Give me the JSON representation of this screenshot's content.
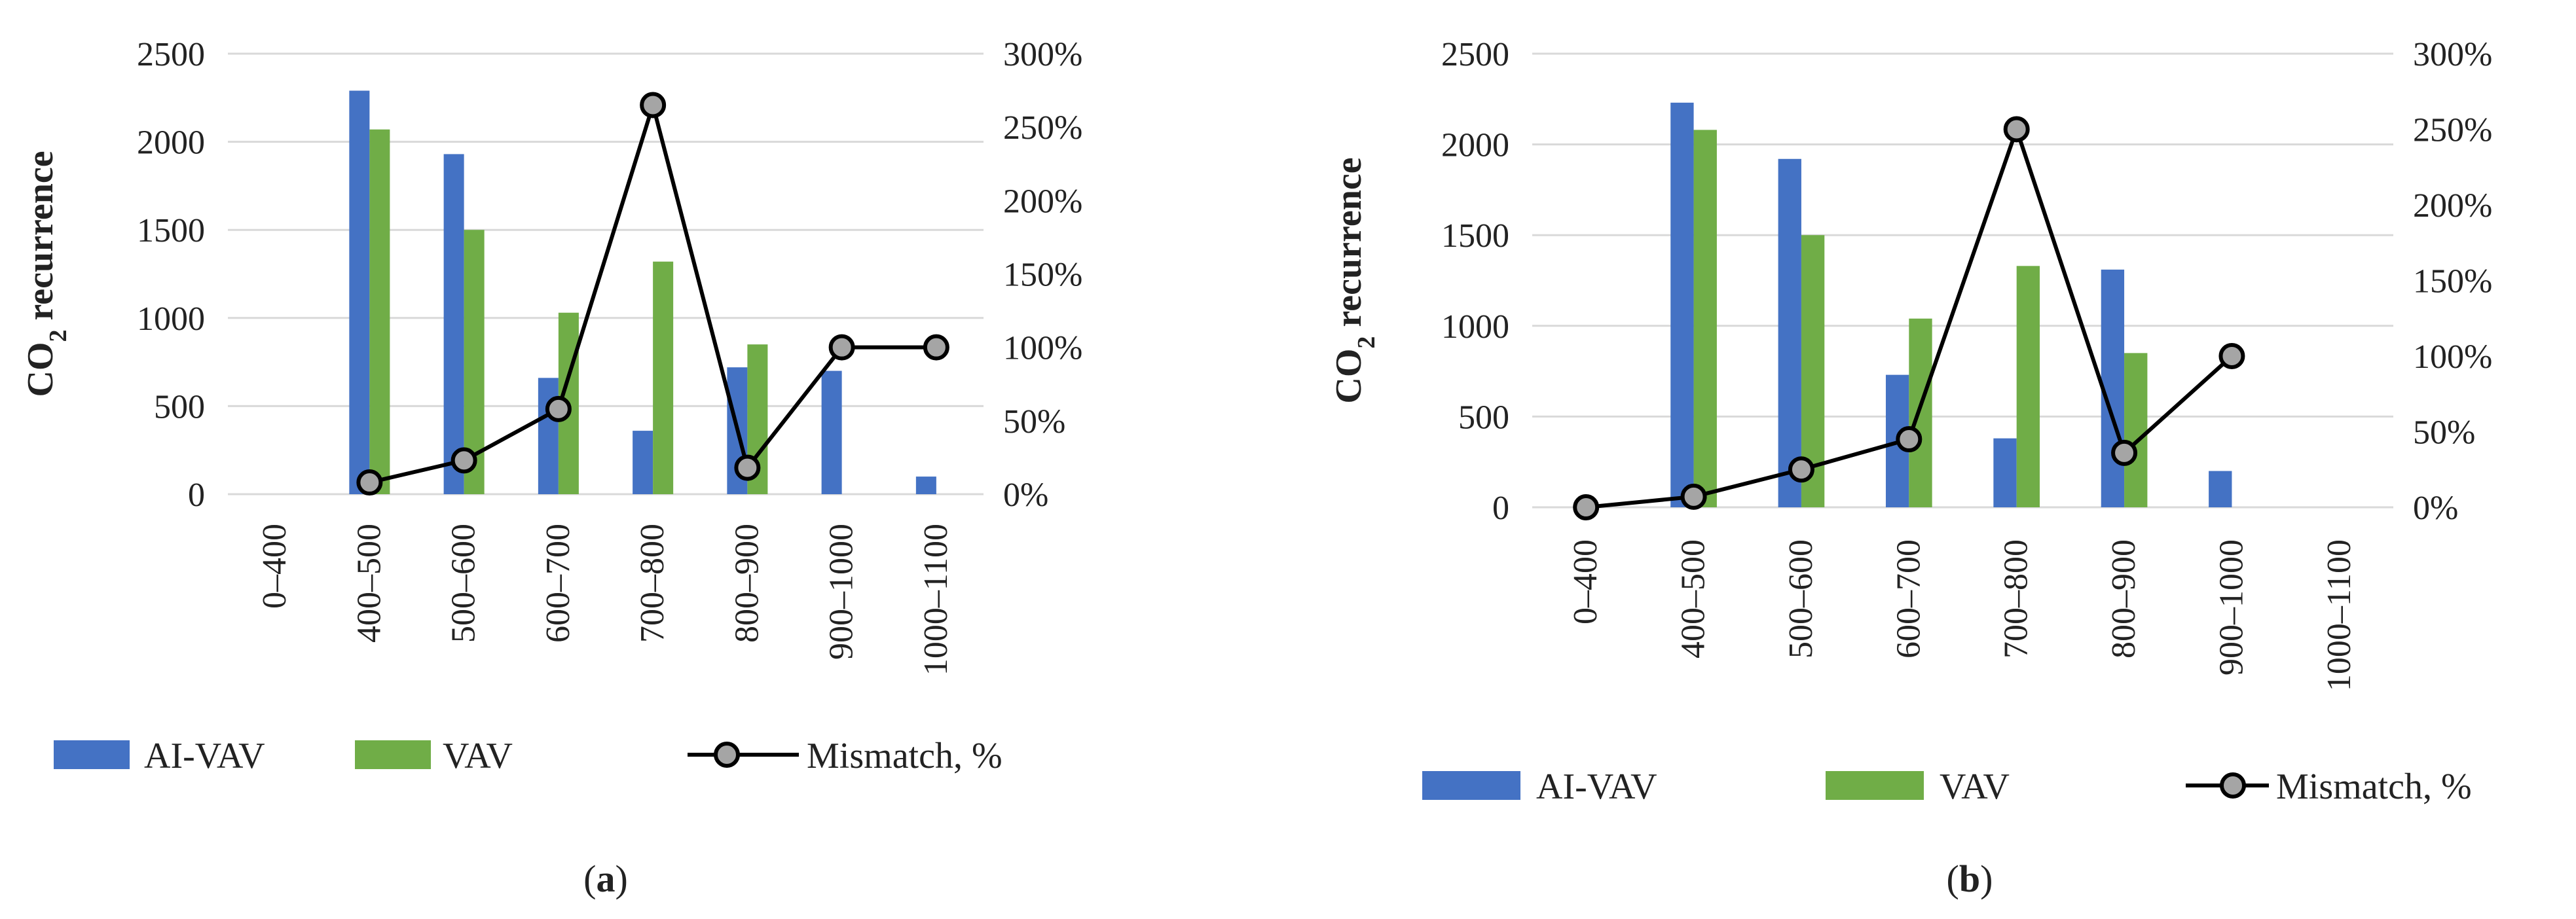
{
  "chart_data": [
    {
      "type": "bar",
      "caption_label": "a",
      "categories": [
        "0–400",
        "400–500",
        "500–600",
        "600–700",
        "700–800",
        "800–900",
        "900–1000",
        "1000–1100"
      ],
      "ylabel_main": "CO",
      "ylabel_sub": "2",
      "ylabel_rest": " recurrence",
      "ylim": [
        0,
        2500
      ],
      "y_ticks": [
        "0",
        "500",
        "1000",
        "1500",
        "2000",
        "2500"
      ],
      "y2lim": [
        0,
        300
      ],
      "y2_ticks": [
        "0%",
        "50%",
        "100%",
        "150%",
        "200%",
        "250%",
        "300%"
      ],
      "legend_position": "bottom",
      "grid": true,
      "series": [
        {
          "name": "AI-VAV",
          "kind": "bar",
          "axis": "left",
          "values": [
            0,
            2290,
            1930,
            660,
            360,
            720,
            700,
            100
          ]
        },
        {
          "name": "VAV",
          "kind": "bar",
          "axis": "left",
          "values": [
            0,
            2070,
            1500,
            1030,
            1320,
            850,
            0,
            0
          ]
        },
        {
          "name": "Mismatch, %",
          "kind": "line",
          "axis": "right",
          "values": [
            null,
            8,
            23,
            58,
            265,
            18,
            100,
            100
          ]
        }
      ]
    },
    {
      "type": "bar",
      "caption_label": "b",
      "categories": [
        "0–400",
        "400–500",
        "500–600",
        "600–700",
        "700–800",
        "800–900",
        "900–1000",
        "1000–1100"
      ],
      "ylabel_main": "CO",
      "ylabel_sub": "2",
      "ylabel_rest": " recurrence",
      "ylim": [
        0,
        2500
      ],
      "y_ticks": [
        "0",
        "500",
        "1000",
        "1500",
        "2000",
        "2500"
      ],
      "y2lim": [
        0,
        300
      ],
      "y2_ticks": [
        "0%",
        "50%",
        "100%",
        "150%",
        "200%",
        "250%",
        "300%"
      ],
      "legend_position": "bottom",
      "grid": true,
      "series": [
        {
          "name": "AI-VAV",
          "kind": "bar",
          "axis": "left",
          "values": [
            0,
            2230,
            1920,
            730,
            380,
            1310,
            200,
            0
          ]
        },
        {
          "name": "VAV",
          "kind": "bar",
          "axis": "left",
          "values": [
            0,
            2080,
            1500,
            1040,
            1330,
            850,
            0,
            0
          ]
        },
        {
          "name": "Mismatch, %",
          "kind": "line",
          "axis": "right",
          "values": [
            0,
            7,
            25,
            45,
            250,
            36,
            100,
            null
          ]
        }
      ]
    }
  ],
  "colors": {
    "ai_vav": "#4472c4",
    "vav": "#70ad47",
    "mismatch_line": "#000000",
    "mismatch_marker": "#a5a5a5",
    "grid": "#d9d9d9",
    "text": "#222222"
  }
}
